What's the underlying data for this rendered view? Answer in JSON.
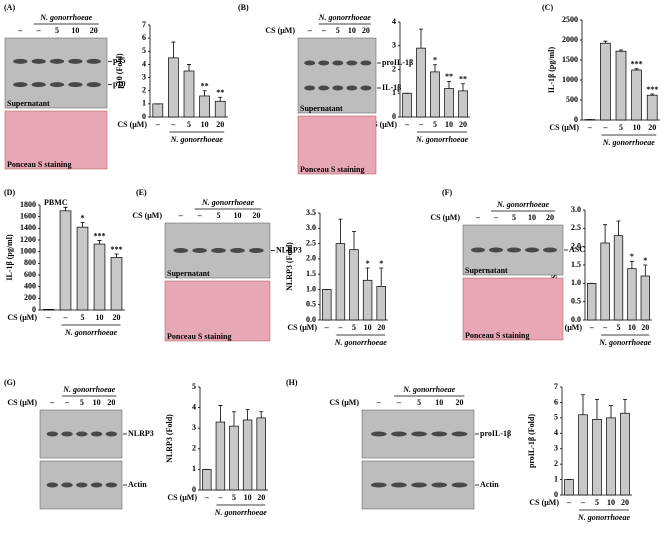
{
  "chart_data": [
    {
      "type": "bar",
      "panel": "(A)",
      "ylabel": "p10 (Fold)",
      "x_prefix": "CS (μM)",
      "categories": [
        "–",
        "–",
        "5",
        "10",
        "20"
      ],
      "group_label": "N. gonorrhoeae",
      "values": [
        1,
        4.5,
        3.5,
        1.6,
        1.2
      ],
      "errors": [
        0,
        1.2,
        0.5,
        0.4,
        0.3
      ],
      "annotations": [
        null,
        null,
        null,
        "**",
        "**"
      ],
      "color": "#c8c8c8",
      "ylim": [
        0,
        7
      ],
      "yticks": [
        0,
        1,
        2,
        3,
        4,
        5,
        6,
        7
      ]
    },
    {
      "type": "bar",
      "panel": "(B)",
      "ylabel": "IL-1β (Fold)",
      "x_prefix": "CS (μM)",
      "categories": [
        "–",
        "–",
        "5",
        "10",
        "20"
      ],
      "group_label": "N. gonorrhoeae",
      "values": [
        1,
        2.9,
        1.9,
        1.2,
        1.1
      ],
      "errors": [
        0,
        0.8,
        0.3,
        0.3,
        0.3
      ],
      "annotations": [
        null,
        null,
        "*",
        "**",
        "**"
      ],
      "color": "#c8c8c8",
      "ylim": [
        0,
        4
      ],
      "yticks": [
        0,
        1,
        2,
        3,
        4
      ]
    },
    {
      "type": "bar",
      "panel": "(C)",
      "ylabel": "IL-1β (pg/ml)",
      "x_prefix": "CS (μM)",
      "categories": [
        "–",
        "–",
        "5",
        "10",
        "20"
      ],
      "group_label": "N. gonorrhoeae",
      "values": [
        10,
        1920,
        1720,
        1250,
        620
      ],
      "errors": [
        0,
        50,
        30,
        30,
        30
      ],
      "annotations": [
        null,
        null,
        null,
        "***",
        "***"
      ],
      "color": "#c8c8c8",
      "ylim": [
        0,
        2500
      ],
      "yticks": [
        0,
        500,
        1000,
        1500,
        2000,
        2500
      ]
    },
    {
      "type": "bar",
      "panel": "(D)",
      "title": "PBMC",
      "ylabel": "IL-1β (pg/ml)",
      "x_prefix": "CS (μM)",
      "categories": [
        "–",
        "–",
        "5",
        "10",
        "20"
      ],
      "group_label": "N. gonorrhoeae",
      "values": [
        10,
        1700,
        1420,
        1130,
        900
      ],
      "errors": [
        0,
        60,
        80,
        60,
        60
      ],
      "annotations": [
        null,
        null,
        "*",
        "***",
        "***"
      ],
      "color": "#c8c8c8",
      "ylim": [
        0,
        1800
      ],
      "yticks": [
        0,
        200,
        400,
        600,
        800,
        1000,
        1200,
        1400,
        1600,
        1800
      ]
    },
    {
      "type": "bar",
      "panel": "(E)",
      "ylabel": "NLRP3 (Fold)",
      "x_prefix": "CS (μM)",
      "categories": [
        "–",
        "–",
        "5",
        "10",
        "20"
      ],
      "group_label": "N. gonorrhoeae",
      "values": [
        1,
        2.5,
        2.3,
        1.3,
        1.1
      ],
      "errors": [
        0,
        0.8,
        0.6,
        0.4,
        0.6
      ],
      "annotations": [
        null,
        null,
        null,
        "*",
        "*"
      ],
      "color": "#c8c8c8",
      "ylim": [
        0,
        3.5
      ],
      "yticks": [
        {
          "value": 0,
          "label": "0.0"
        },
        0.5,
        {
          "value": 1,
          "label": "1.0"
        },
        1.5,
        {
          "value": 2,
          "label": "2.0"
        },
        2.5,
        {
          "value": 3,
          "label": "3.0"
        },
        3.5
      ]
    },
    {
      "type": "bar",
      "panel": "(F)",
      "ylabel": "ASC (Fold)",
      "x_prefix": "CS (μM)",
      "categories": [
        "–",
        "–",
        "5",
        "10",
        "20"
      ],
      "group_label": "N. gonorrhoeae",
      "values": [
        1,
        2.1,
        2.3,
        1.4,
        1.2
      ],
      "errors": [
        0,
        0.5,
        0.4,
        0.2,
        0.3
      ],
      "annotations": [
        null,
        null,
        null,
        "*",
        "*"
      ],
      "color": "#c8c8c8",
      "ylim": [
        0,
        3
      ],
      "yticks": [
        {
          "value": 0,
          "label": "0.0"
        },
        0.5,
        {
          "value": 1,
          "label": "1.0"
        },
        1.5,
        {
          "value": 2,
          "label": "2.0"
        },
        2.5,
        {
          "value": 3,
          "label": "3.0"
        }
      ]
    },
    {
      "type": "bar",
      "panel": "(G)",
      "ylabel": "NLRP3 (Fold)",
      "x_prefix": "CS (μM)",
      "categories": [
        "–",
        "–",
        "5",
        "10",
        "20"
      ],
      "group_label": "N. gonorrhoeae",
      "values": [
        1,
        3.3,
        3.1,
        3.4,
        3.5
      ],
      "errors": [
        0,
        0.8,
        0.7,
        0.5,
        0.3
      ],
      "annotations": [
        null,
        null,
        null,
        null,
        null
      ],
      "color": "#c8c8c8",
      "ylim": [
        0,
        5
      ],
      "yticks": [
        0,
        1,
        2,
        3,
        4,
        5
      ]
    },
    {
      "type": "bar",
      "panel": "(H)",
      "ylabel": "proIL-1β (Fold)",
      "x_prefix": "CS (μM)",
      "categories": [
        "–",
        "–",
        "5",
        "10",
        "20"
      ],
      "group_label": "N. gonorrhoeae",
      "values": [
        1,
        5.2,
        4.9,
        5.0,
        5.3
      ],
      "errors": [
        0,
        1.3,
        1.3,
        0.8,
        0.9
      ],
      "annotations": [
        null,
        null,
        null,
        null,
        null
      ],
      "color": "#c8c8c8",
      "ylim": [
        0,
        7
      ],
      "yticks": [
        0,
        1,
        2,
        3,
        4,
        5,
        6,
        7
      ]
    }
  ],
  "blots": [
    {
      "header": "N. gonorrhoeae",
      "lanes": [
        "–",
        "–",
        "5",
        "10",
        "20"
      ],
      "strips": [
        {
          "bands": [
            "p45",
            "p10"
          ],
          "caption": "Supernatant"
        }
      ],
      "stain": "Ponceau S staining"
    },
    {
      "header": "N. gonorrhoeae",
      "cs_label": "CS (μM)",
      "lanes": [
        "–",
        "–",
        "5",
        "10",
        "20"
      ],
      "strips": [
        {
          "bands": [
            "proIL-1β",
            "IL-1β"
          ],
          "caption": "Supernatant"
        }
      ],
      "stain": "Ponceau S staining"
    },
    {
      "header": "N. gonorrhoeae",
      "cs_label": "CS (μM)",
      "lanes": [
        "–",
        "–",
        "5",
        "10",
        "20"
      ],
      "strips": [
        {
          "bands": [
            "NLRP3"
          ],
          "caption": "Supernatant"
        }
      ],
      "stain": "Ponceau S staining"
    },
    {
      "header": "N. gonorrhoeae",
      "cs_label": "CS (μM)",
      "lanes": [
        "–",
        "–",
        "5",
        "10",
        "20"
      ],
      "strips": [
        {
          "bands": [
            "ASC"
          ],
          "caption": "Supernatant"
        }
      ],
      "stain": "Ponceau S staining"
    },
    {
      "header": "N. gonorrhoeae",
      "cs_label": "CS (μM)",
      "lanes": [
        "–",
        "–",
        "5",
        "10",
        "20"
      ],
      "strips": [
        {
          "bands": [
            "NLRP3"
          ]
        },
        {
          "bands": [
            "Actin"
          ]
        }
      ]
    },
    {
      "header": "N. gonorrhoeae",
      "cs_label": "CS (μM)",
      "lanes": [
        "–",
        "–",
        "5",
        "10",
        "20"
      ],
      "strips": [
        {
          "bands": [
            "proIL-1β"
          ]
        },
        {
          "bands": [
            "Actin"
          ]
        }
      ]
    }
  ]
}
